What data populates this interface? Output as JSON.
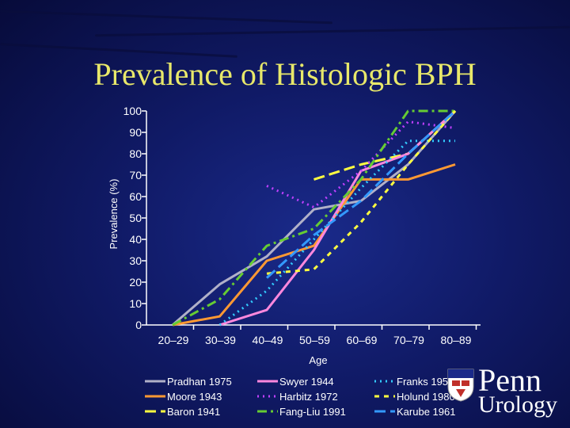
{
  "slide": {
    "title": "Prevalence of Histologic BPH"
  },
  "logo": {
    "name": "penn-urology-logo",
    "line1": "Penn",
    "line2": "Urology"
  },
  "chart_data": {
    "type": "line",
    "title": "Prevalence of Histologic BPH",
    "xlabel": "Age",
    "ylabel": "Prevalence (%)",
    "categories": [
      "20–29",
      "30–39",
      "40–49",
      "50–59",
      "60–69",
      "70–79",
      "80–89"
    ],
    "y_ticks": [
      0,
      10,
      20,
      30,
      40,
      50,
      60,
      70,
      80,
      90,
      100
    ],
    "ylim": [
      0,
      100
    ],
    "legend_position": "bottom",
    "series": [
      {
        "name": "Pradhan 1975",
        "color": "#b0b0c8",
        "dash": "solid",
        "values": [
          0,
          19,
          32,
          54,
          58,
          75,
          100
        ]
      },
      {
        "name": "Moore 1943",
        "color": "#ff9933",
        "dash": "solid",
        "values": [
          0,
          4,
          30,
          37,
          68,
          68,
          75
        ]
      },
      {
        "name": "Baron 1941",
        "color": "#ffff40",
        "dash": "longdash",
        "values": [
          null,
          null,
          null,
          68,
          75,
          80,
          100
        ]
      },
      {
        "name": "Swyer 1944",
        "color": "#ff88dd",
        "dash": "solid",
        "values": [
          null,
          0,
          7,
          35,
          72,
          80,
          100
        ]
      },
      {
        "name": "Harbitz 1972",
        "color": "#c040ff",
        "dash": "dot",
        "values": [
          null,
          null,
          65,
          55,
          72,
          95,
          92
        ]
      },
      {
        "name": "Fang-Liu 1991",
        "color": "#66cc33",
        "dash": "dashdot",
        "values": [
          0,
          12,
          37,
          45,
          68,
          100,
          100
        ]
      },
      {
        "name": "Franks 1954",
        "color": "#33ccff",
        "dash": "dot",
        "values": [
          null,
          0,
          16,
          40,
          64,
          86,
          86
        ]
      },
      {
        "name": "Holund 1980",
        "color": "#ffff40",
        "dash": "shortdash",
        "values": [
          null,
          null,
          24,
          26,
          48,
          75,
          100
        ]
      },
      {
        "name": "Karube 1961",
        "color": "#3399ff",
        "dash": "longdash",
        "values": [
          null,
          null,
          22,
          42,
          58,
          80,
          100
        ]
      }
    ]
  }
}
